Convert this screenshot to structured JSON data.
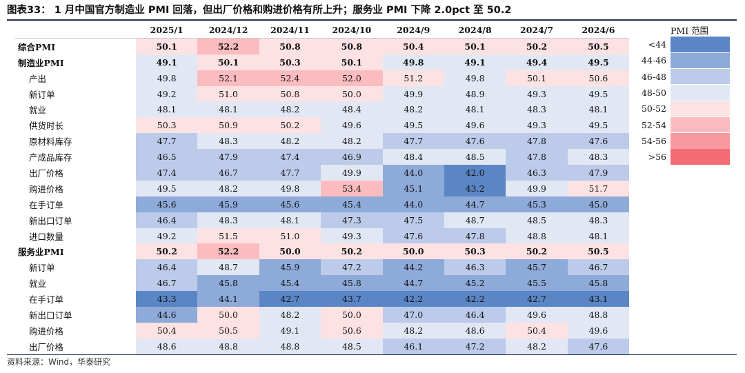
{
  "title": "图表33：  1 月中国官方制造业 PMI 回落，但出厂价格和购进价格有所上升；服务业 PMI 下降 2.0pct 至 50.2",
  "source": "资料来源：Wind，华泰研究",
  "chart_data": {
    "type": "heatmap",
    "columns": [
      "2025/1",
      "2024/12",
      "2024/11",
      "2024/10",
      "2024/9",
      "2024/8",
      "2024/7",
      "2024/6"
    ],
    "rows": [
      {
        "label": "综合PMI",
        "level": 0,
        "bold": true,
        "values": [
          50.1,
          52.2,
          50.8,
          50.8,
          50.4,
          50.1,
          50.2,
          50.5
        ]
      },
      {
        "label": "制造业PMI",
        "level": 0,
        "bold": true,
        "values": [
          49.1,
          50.1,
          50.3,
          50.1,
          49.8,
          49.1,
          49.4,
          49.5
        ]
      },
      {
        "label": "产出",
        "level": 1,
        "values": [
          49.8,
          52.1,
          52.4,
          52.0,
          51.2,
          49.8,
          50.1,
          50.6
        ]
      },
      {
        "label": "新订单",
        "level": 1,
        "values": [
          49.2,
          51.0,
          50.8,
          50.0,
          49.9,
          48.9,
          49.3,
          49.5
        ]
      },
      {
        "label": "就业",
        "level": 1,
        "values": [
          48.1,
          48.1,
          48.2,
          48.4,
          48.2,
          48.1,
          48.3,
          48.1
        ]
      },
      {
        "label": "供货时长",
        "level": 1,
        "values": [
          50.3,
          50.9,
          50.2,
          49.6,
          49.5,
          49.6,
          49.3,
          49.5
        ]
      },
      {
        "label": "原材料库存",
        "level": 1,
        "values": [
          47.7,
          48.3,
          48.2,
          48.2,
          47.7,
          47.6,
          47.8,
          47.6
        ]
      },
      {
        "label": "产成品库存",
        "level": 1,
        "values": [
          46.5,
          47.9,
          47.4,
          46.9,
          48.4,
          48.5,
          47.8,
          48.3
        ]
      },
      {
        "label": "出厂价格",
        "level": 1,
        "values": [
          47.4,
          46.7,
          47.7,
          49.9,
          44.0,
          42.0,
          46.3,
          47.9
        ]
      },
      {
        "label": "购进价格",
        "level": 1,
        "values": [
          49.5,
          48.2,
          49.8,
          53.4,
          45.1,
          43.2,
          49.9,
          51.7
        ]
      },
      {
        "label": "在手订单",
        "level": 1,
        "values": [
          45.6,
          45.9,
          45.6,
          45.4,
          44.0,
          44.7,
          45.3,
          45.0
        ]
      },
      {
        "label": "新出口订单",
        "level": 1,
        "values": [
          46.4,
          48.3,
          48.1,
          47.3,
          47.5,
          48.7,
          48.5,
          48.3
        ]
      },
      {
        "label": "进口数量",
        "level": 1,
        "values": [
          49.2,
          51.5,
          51.0,
          49.3,
          47.6,
          47.8,
          48.8,
          48.1
        ]
      },
      {
        "label": "服务业PMI",
        "level": 0,
        "bold": true,
        "values": [
          50.2,
          52.2,
          50.0,
          50.2,
          50.0,
          50.3,
          50.2,
          50.5
        ]
      },
      {
        "label": "新订单",
        "level": 1,
        "values": [
          46.4,
          48.7,
          45.9,
          47.2,
          44.2,
          46.3,
          45.7,
          46.7
        ]
      },
      {
        "label": "就业",
        "level": 1,
        "values": [
          46.7,
          45.8,
          45.4,
          45.8,
          44.7,
          45.2,
          45.5,
          45.8
        ]
      },
      {
        "label": "在手订单",
        "level": 1,
        "values": [
          43.3,
          44.1,
          42.7,
          43.7,
          42.2,
          42.2,
          42.7,
          43.1
        ]
      },
      {
        "label": "新出口订单",
        "level": 1,
        "values": [
          44.6,
          50.0,
          48.2,
          50.0,
          47.0,
          46.4,
          49.6,
          48.8
        ]
      },
      {
        "label": "购进价格",
        "level": 1,
        "values": [
          50.4,
          50.5,
          49.1,
          50.6,
          48.2,
          48.6,
          50.4,
          49.6
        ]
      },
      {
        "label": "出厂价格",
        "level": 1,
        "values": [
          48.6,
          48.8,
          48.8,
          48.5,
          46.1,
          47.2,
          48.2,
          47.6
        ]
      }
    ],
    "legend": {
      "title": "PMI 范围",
      "bins": [
        {
          "label": "<44",
          "max": 44,
          "color": "#5b86c6"
        },
        {
          "label": "44-46",
          "max": 46,
          "color": "#8eaad9"
        },
        {
          "label": "46-48",
          "max": 48,
          "color": "#bccbea"
        },
        {
          "label": "48-50",
          "max": 50,
          "color": "#e2e7f4"
        },
        {
          "label": "50-52",
          "max": 52,
          "color": "#fde2e4"
        },
        {
          "label": "52-54",
          "max": 54,
          "color": "#fbbcbf"
        },
        {
          "label": "54-56",
          "max": 56,
          "color": "#f8999e"
        },
        {
          "label": ">56",
          "max": 999,
          "color": "#f36c74"
        }
      ]
    }
  }
}
